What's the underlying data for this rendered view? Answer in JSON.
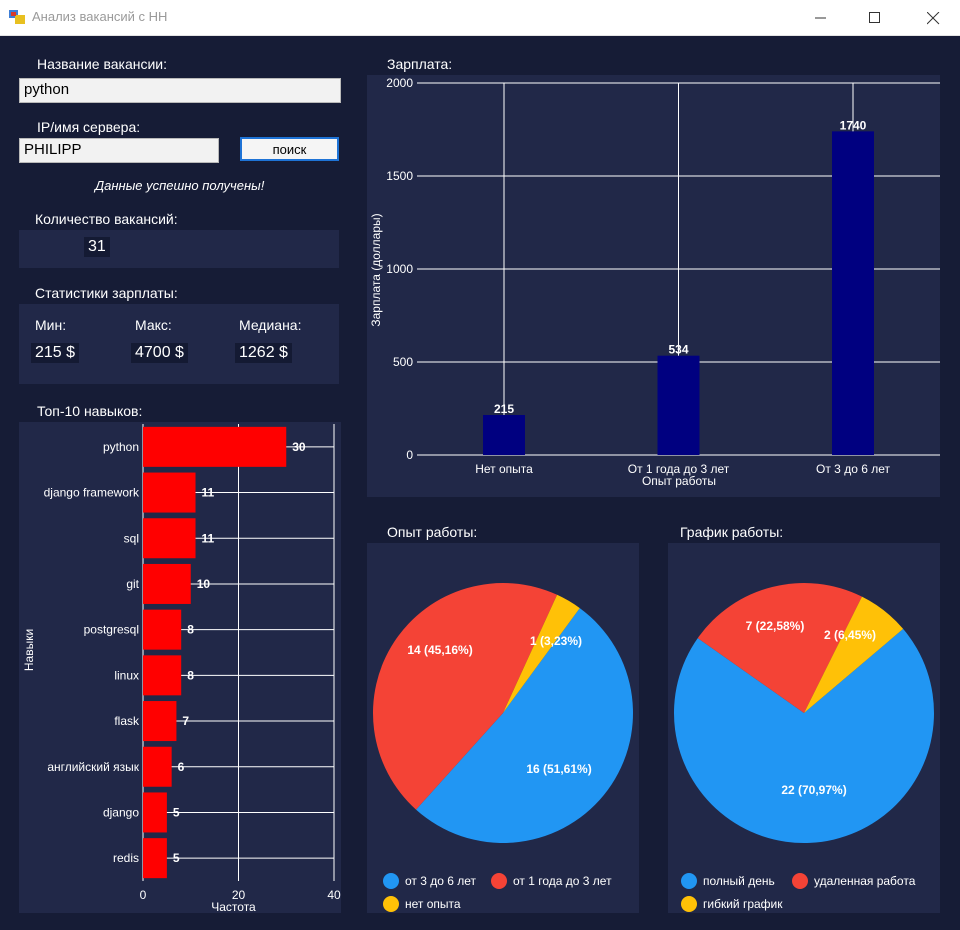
{
  "window": {
    "title": "Анализ вакансий с HH"
  },
  "form": {
    "vacancy_label": "Название вакансии:",
    "vacancy_value": "python",
    "server_label": "IP/имя сервера:",
    "server_value": "PHILIPP",
    "search_button": "поиск",
    "status": "Данные успешно получены!"
  },
  "count": {
    "label": "Количество вакансий:",
    "value": "31"
  },
  "salary_stats": {
    "label": "Статистики зарплаты:",
    "min_label": "Мин:",
    "min_value": "215 $",
    "max_label": "Макс:",
    "max_value": "4700 $",
    "median_label": "Медиана:",
    "median_value": "1262 $"
  },
  "skills_title": "Топ-10 навыков:",
  "salary_title": "Зарплата:",
  "experience_title": "Опыт работы:",
  "schedule_title": "График работы:",
  "colors": {
    "bar_skills": "#ff0000",
    "bar_salary": "#000080",
    "pie_blue": "#2196f3",
    "pie_red": "#f44336",
    "pie_yellow": "#ffc107"
  },
  "chart_data": [
    {
      "type": "bar",
      "orientation": "horizontal",
      "categories": [
        "python",
        "django framework",
        "sql",
        "git",
        "postgresql",
        "linux",
        "flask",
        "английский язык",
        "django",
        "redis"
      ],
      "values": [
        30,
        11,
        11,
        10,
        8,
        8,
        7,
        6,
        5,
        5
      ],
      "xlabel": "Частота",
      "ylabel": "Навыки",
      "xlim": [
        0,
        40
      ],
      "xticks": [
        0,
        20,
        40
      ],
      "grid": true
    },
    {
      "type": "bar",
      "categories": [
        "Нет опыта",
        "От 1 года до 3 лет",
        "От 3 до 6 лет"
      ],
      "values": [
        215,
        534,
        1740
      ],
      "xlabel": "Опыт работы",
      "ylabel": "Зарплата (доллары)",
      "ylim": [
        0,
        2000
      ],
      "yticks": [
        0,
        500,
        1000,
        1500,
        2000
      ],
      "grid": true
    },
    {
      "type": "pie",
      "slices": [
        {
          "name": "от 3 до 6 лет",
          "value": 16,
          "label": "16 (51,61%)"
        },
        {
          "name": "от 1 года до 3 лет",
          "value": 14,
          "label": "14 (45,16%)"
        },
        {
          "name": "нет опыта",
          "value": 1,
          "label": "1 (3,23%)"
        }
      ],
      "legend": "bottom"
    },
    {
      "type": "pie",
      "slices": [
        {
          "name": "полный день",
          "value": 22,
          "label": "22 (70,97%)"
        },
        {
          "name": "удаленная работа",
          "value": 7,
          "label": "7 (22,58%)"
        },
        {
          "name": "гибкий график",
          "value": 2,
          "label": "2 (6,45%)"
        }
      ],
      "legend": "bottom"
    }
  ]
}
